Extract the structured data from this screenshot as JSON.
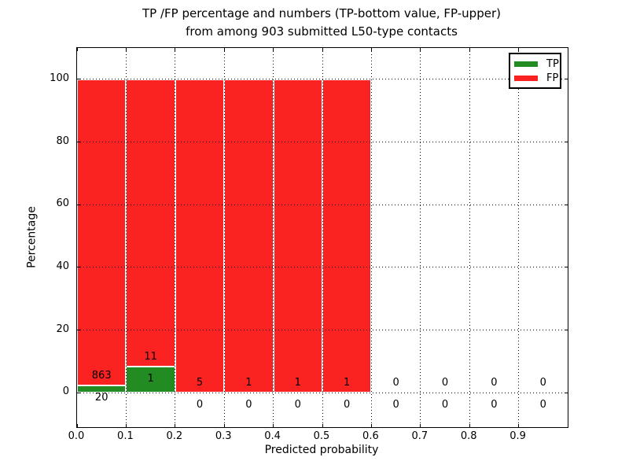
{
  "chart_data": {
    "type": "bar",
    "stacked": true,
    "normalized_per_bin": true,
    "title_line1": "TP /FP percentage and numbers (TP-bottom value, FP-upper)",
    "title_line2": "from among 903 submitted L50-type contacts",
    "xlabel": "Predicted probability",
    "ylabel": "Percentage",
    "xlim": [
      0.0,
      1.0
    ],
    "ylim": [
      -11,
      110
    ],
    "bin_width": 0.1,
    "x_tick_labels": [
      "0.0",
      "0.1",
      "0.2",
      "0.3",
      "0.4",
      "0.5",
      "0.6",
      "0.7",
      "0.8",
      "0.9"
    ],
    "y_tick_values": [
      0,
      20,
      40,
      60,
      80,
      100
    ],
    "grid": "dotted",
    "total_contacts": 903,
    "categories": [
      "0.0-0.1",
      "0.1-0.2",
      "0.2-0.3",
      "0.3-0.4",
      "0.4-0.5",
      "0.5-0.6",
      "0.6-0.7",
      "0.7-0.8",
      "0.8-0.9",
      "0.9-1.0"
    ],
    "series": [
      {
        "name": "TP",
        "color": "#228b22",
        "counts": [
          20,
          1,
          0,
          0,
          0,
          0,
          0,
          0,
          0,
          0
        ]
      },
      {
        "name": "FP",
        "color": "#fb2222",
        "counts": [
          863,
          11,
          5,
          1,
          1,
          1,
          0,
          0,
          0,
          0
        ]
      }
    ],
    "legend": {
      "position": "upper-right",
      "entries": [
        {
          "label": "TP",
          "color": "#228b22"
        },
        {
          "label": "FP",
          "color": "#fb2222"
        }
      ]
    }
  },
  "colors": {
    "tp": "#228b22",
    "fp": "#fb2222",
    "grid": "#000000",
    "frame": "#000000",
    "text": "#000000",
    "background": "#ffffff",
    "bar_edge": "#ffffff"
  }
}
